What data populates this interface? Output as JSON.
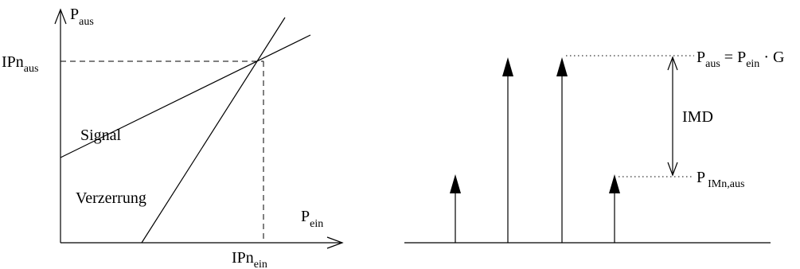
{
  "left_diagram": {
    "y_axis": {
      "main": "P",
      "sub": "aus"
    },
    "x_axis": {
      "main": "P",
      "sub": "ein"
    },
    "y_marker": {
      "main": "IPn",
      "sub": "aus"
    },
    "x_marker": {
      "main": "IPn",
      "sub": "ein"
    },
    "signal_label": "Signal",
    "distortion_label": "Verzerrung"
  },
  "right_diagram": {
    "pout_eq": {
      "p1": "P",
      "s1": "aus",
      "eq": " = P",
      "s2": "ein",
      "g": " · G"
    },
    "imd_label": "IMD",
    "pim": {
      "main": "P",
      "sub": "IMn,aus"
    }
  }
}
